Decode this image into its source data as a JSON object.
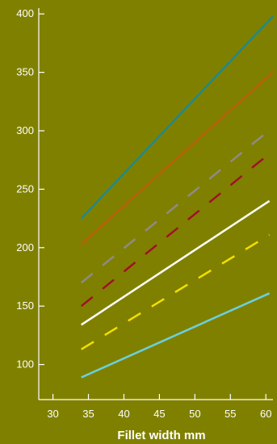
{
  "chart_data": {
    "type": "line",
    "xlabel": "Fillet width mm",
    "ylabel": "",
    "xlim": [
      28,
      61
    ],
    "ylim": [
      70,
      405
    ],
    "xticks": [
      30,
      35,
      40,
      45,
      50,
      55,
      60
    ],
    "yticks": [
      100,
      150,
      200,
      250,
      300,
      350,
      400
    ],
    "grid": false,
    "series": [
      {
        "x": [
          34,
          61
        ],
        "y": [
          225,
          398
        ],
        "color": "#1f8a8a",
        "style": "solid"
      },
      {
        "x": [
          34,
          61
        ],
        "y": [
          203,
          350
        ],
        "color": "#b8610a",
        "style": "solid"
      },
      {
        "x": [
          34,
          60
        ],
        "y": [
          170,
          298
        ],
        "color": "#8e8a8a",
        "style": "dashed"
      },
      {
        "x": [
          34,
          60
        ],
        "y": [
          150,
          278
        ],
        "color": "#a0102a",
        "style": "dashed"
      },
      {
        "x": [
          34,
          60.5
        ],
        "y": [
          134,
          240
        ],
        "color": "#ffffff",
        "style": "solid"
      },
      {
        "x": [
          34,
          60.5
        ],
        "y": [
          113,
          211
        ],
        "color": "#f0e000",
        "style": "dashed"
      },
      {
        "x": [
          34,
          60.5
        ],
        "y": [
          89,
          161
        ],
        "color": "#6ad0e0",
        "style": "solid"
      }
    ]
  }
}
